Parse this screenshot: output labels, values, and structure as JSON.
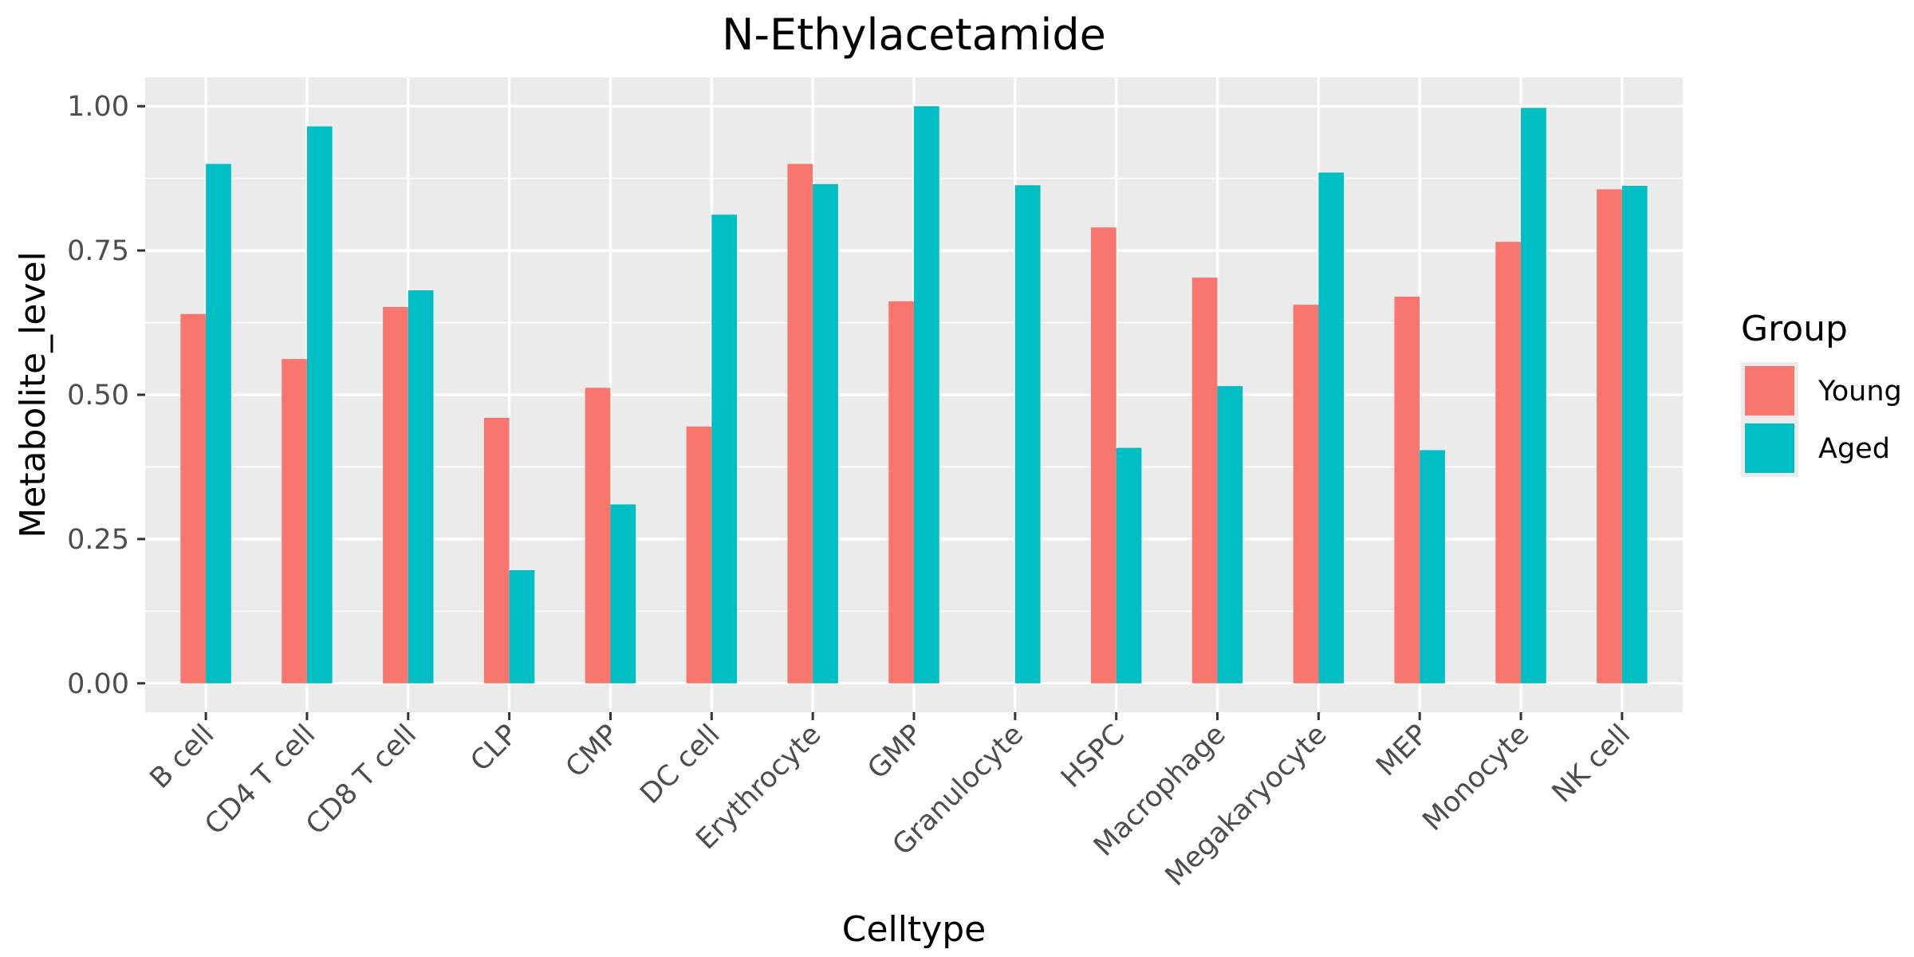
{
  "chart_data": {
    "type": "bar",
    "title": "N-Ethylacetamide",
    "xlabel": "Celltype",
    "ylabel": "Metabolite_level",
    "ylim": [
      -0.05,
      1.05
    ],
    "yticks": [
      0,
      0.25,
      0.5,
      0.75,
      1
    ],
    "ytick_labels": [
      "0.00",
      "0.25",
      "0.50",
      "0.75",
      "1.00"
    ],
    "categories": [
      "B cell",
      "CD4 T cell",
      "CD8 T cell",
      "CLP",
      "CMP",
      "DC cell",
      "Erythrocyte",
      "GMP",
      "Granulocyte",
      "HSPC",
      "Macrophage",
      "Megakaryocyte",
      "MEP",
      "Monocyte",
      "NK cell"
    ],
    "series": [
      {
        "name": "Young",
        "color": "#F8766D",
        "values": [
          0.64,
          0.562,
          0.652,
          0.46,
          0.512,
          0.445,
          0.9,
          0.662,
          null,
          0.79,
          0.703,
          0.656,
          0.67,
          0.765,
          0.856
        ]
      },
      {
        "name": "Aged",
        "color": "#00BFC4",
        "values": [
          0.9,
          0.965,
          0.681,
          0.196,
          0.31,
          0.812,
          0.865,
          1.0,
          0.863,
          0.408,
          0.515,
          0.885,
          0.404,
          0.997,
          0.862
        ]
      }
    ],
    "legend": {
      "title": "Group",
      "position": "right"
    },
    "grid": true,
    "panel_background": "#EBEBEB",
    "grid_color": "#FFFFFF"
  }
}
